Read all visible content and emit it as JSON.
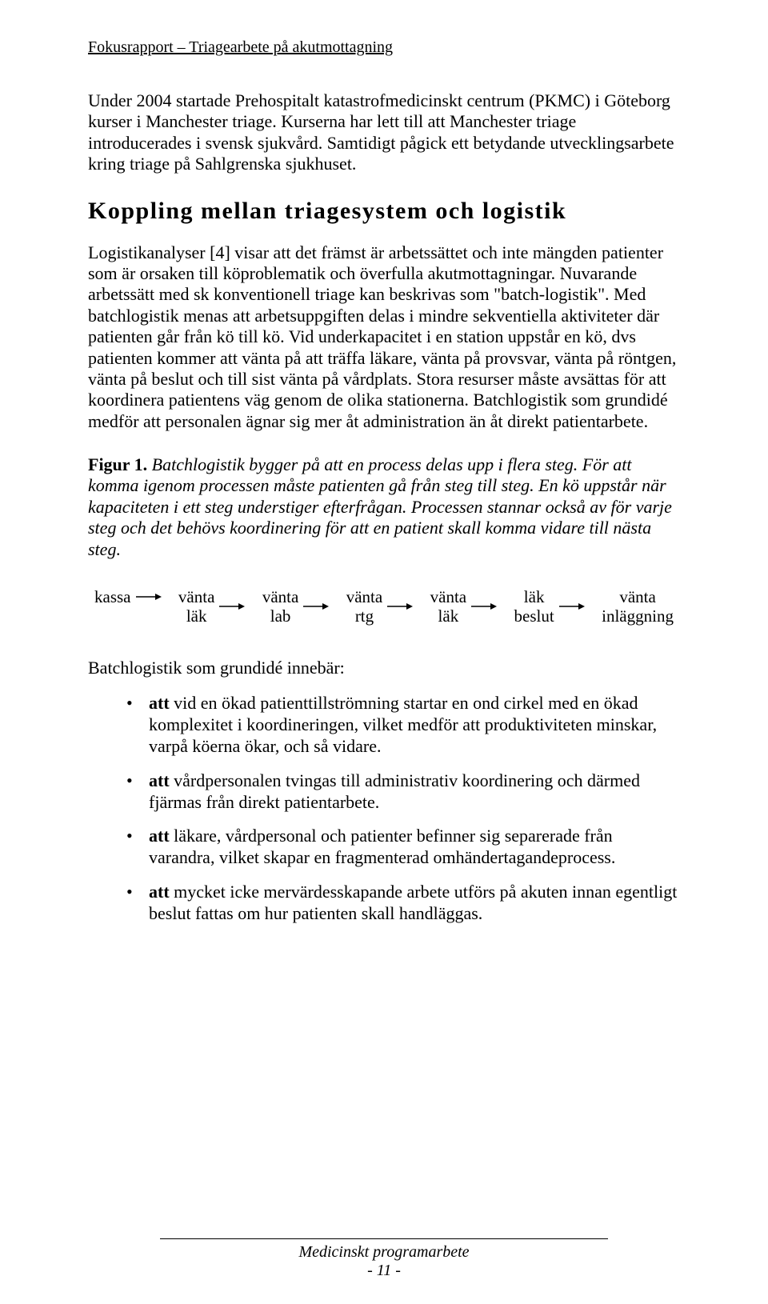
{
  "header": "Fokusrapport – Triagearbete på akutmottagning",
  "intro_para": "Under 2004 startade Prehospitalt katastrofmedicinskt centrum (PKMC) i Göteborg kurser i Manchester triage. Kurserna har lett till att Manchester triage introducerades i svensk sjukvård. Samtidigt pågick ett betydande utvecklingsarbete kring triage på Sahlgrenska sjukhuset.",
  "section_heading": "Koppling mellan triagesystem och logistik",
  "body_para": "Logistikanalyser [4] visar att det främst är arbetssättet och inte mängden patienter som är orsaken till köproblematik och överfulla akutmottagningar. Nuvarande arbetssätt med sk konventionell triage kan beskrivas som \"batch-logistik\". Med batchlogistik menas att arbetsuppgiften delas i mindre sekventiella aktiviteter där patienten går från kö till kö. Vid underkapacitet i en station uppstår en kö, dvs patienten kommer att vänta på att träffa läkare, vänta på provsvar, vänta på röntgen, vänta på beslut och till sist vänta på vårdplats. Stora resurser måste avsättas för att koordinera patientens väg genom de olika stationerna. Batchlogistik som grundidé medför att personalen ägnar sig mer åt administration än åt direkt patientarbete.",
  "figure_label": "Figur 1.",
  "figure_caption_rest": " Batchlogistik bygger på att en process delas upp i flera steg. För att komma igenom processen måste patienten gå från steg till steg. En kö uppstår när kapaciteten i ett steg understiger efterfrågan. Processen stannar också av för varje steg och det behövs koordinering för att en patient skall komma vidare till nästa steg.",
  "flow": [
    "kassa",
    "vänta\nläk",
    "vänta\nlab",
    "vänta\nrtg",
    "vänta\nläk",
    "läk\nbeslut",
    "vänta\ninläggning"
  ],
  "list_intro": "Batchlogistik som grundidé innebär:",
  "bullets": [
    {
      "bold": "att",
      "rest": " vid en ökad patienttillströmning startar en ond cirkel med en ökad komplexitet i koordineringen, vilket medför att produktiviteten minskar, varpå köerna ökar, och så vidare."
    },
    {
      "bold": "att",
      "rest": " vårdpersonalen tvingas till administrativ koordinering och därmed fjärmas från direkt patientarbete."
    },
    {
      "bold": "att",
      "rest": " läkare, vårdpersonal och patienter befinner sig separerade från varandra, vilket skapar en fragmenterad omhändertagandeprocess."
    },
    {
      "bold": "att",
      "rest": " mycket icke mervärdesskapande arbete utförs på akuten innan egentligt beslut fattas om hur patienten skall handläggas."
    }
  ],
  "footer_text": "Medicinskt programarbete",
  "footer_page": "- 11 -",
  "colors": {
    "text": "#000000",
    "background": "#ffffff",
    "rule": "#000000"
  }
}
